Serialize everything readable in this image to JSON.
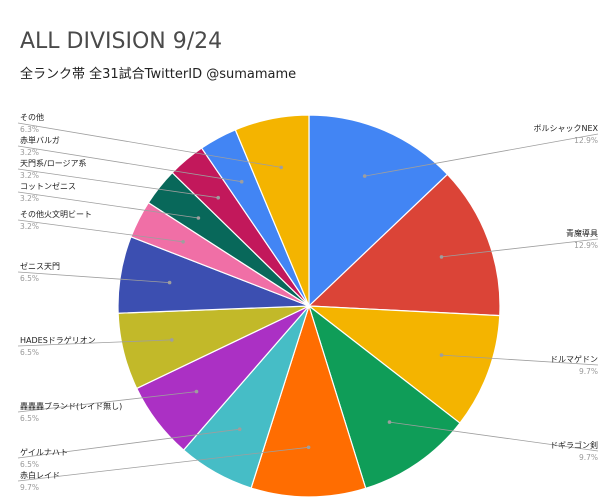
{
  "chart_data": {
    "type": "pie",
    "title": "ALL DIVISION 9/24",
    "subtitle": "全ランク帯 全31試合TwitterID @sumamame",
    "slices": [
      {
        "label": "ボルシャックNEX",
        "value": 12.9,
        "pct_label": "12.9%",
        "color": "#4285f4"
      },
      {
        "label": "青魔導具",
        "value": 12.9,
        "pct_label": "12.9%",
        "color": "#db4437"
      },
      {
        "label": "ドルマゲドン",
        "value": 9.7,
        "pct_label": "9.7%",
        "color": "#f4b400"
      },
      {
        "label": "ドギラゴン剣",
        "value": 9.7,
        "pct_label": "9.7%",
        "color": "#0f9d58"
      },
      {
        "label": "赤白レイド",
        "value": 9.7,
        "pct_label": "9.7%",
        "color": "#ff6d01"
      },
      {
        "label": "ゲイルナハト",
        "value": 6.5,
        "pct_label": "6.5%",
        "color": "#46bdc6"
      },
      {
        "label": "轟轟轟ブランド(レイド無し)",
        "value": 6.5,
        "pct_label": "6.5%",
        "color": "#ab30c4"
      },
      {
        "label": "HADESドラゲリオン",
        "value": 6.5,
        "pct_label": "6.5%",
        "color": "#c2b929"
      },
      {
        "label": "ゼニス天門",
        "value": 6.5,
        "pct_label": "6.5%",
        "color": "#3c4fb1"
      },
      {
        "label": "その他火文明ビート",
        "value": 3.2,
        "pct_label": "3.2%",
        "color": "#f06fa6"
      },
      {
        "label": "コットンゼニス",
        "value": 3.2,
        "pct_label": "3.2%",
        "color": "#08685a"
      },
      {
        "label": "天門系/ロージア系",
        "value": 3.2,
        "pct_label": "3.2%",
        "color": "#c2185b"
      },
      {
        "label": "赤単バルガ",
        "value": 3.2,
        "pct_label": "3.2%",
        "color": "#4285f4"
      },
      {
        "label": "その他",
        "value": 6.3,
        "pct_label": "6.3%",
        "color": "#f4b400"
      }
    ]
  }
}
